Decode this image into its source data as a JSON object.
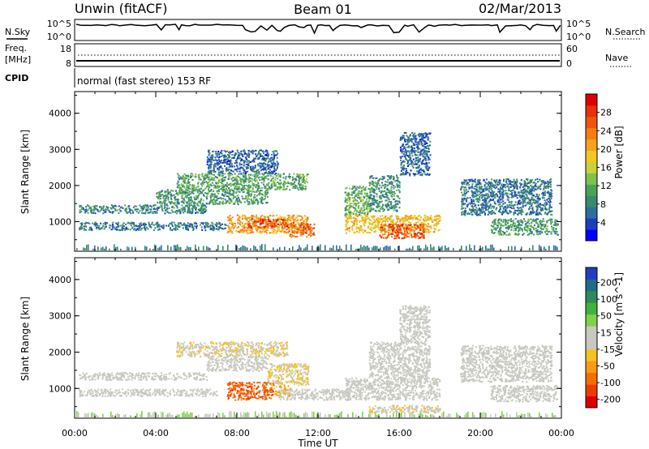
{
  "header": {
    "station": "Unwin (fitACF)",
    "beam": "Beam 01",
    "date": "02/Mar/2013"
  },
  "noise_panel": {
    "left_label": "N.Sky",
    "right_label": "N.Search",
    "left_ticks": [
      "10^5",
      "10^0"
    ],
    "right_ticks": [
      "10^5",
      "10^0"
    ]
  },
  "freq_panel": {
    "left_label_line1": "Freq.",
    "left_label_line2": "[MHz]",
    "right_label": "Nave",
    "left_ticks": [
      "18",
      "8"
    ],
    "right_ticks": [
      "60",
      "0"
    ]
  },
  "cpid_panel": {
    "label": "CPID",
    "text": "normal (fast stereo) 153 RF"
  },
  "chart_data": [
    {
      "type": "heatmap",
      "title": "",
      "xlabel": "Time UT",
      "ylabel": "Slant Range [km]",
      "xlim": [
        0,
        24
      ],
      "ylim": [
        180,
        4600
      ],
      "x_ticks": [
        "00:00",
        "04:00",
        "08:00",
        "12:00",
        "16:00",
        "20:00",
        "00:00"
      ],
      "y_ticks": [
        "1000",
        "2000",
        "3000",
        "4000"
      ],
      "colorbar": {
        "label": "Power [dB]",
        "ticks": [
          "4",
          "8",
          "12",
          "16",
          "20",
          "24",
          "28"
        ],
        "range": [
          0,
          32
        ],
        "colors": [
          "#0000ff",
          "#1a3fbf",
          "#2d6ea0",
          "#3a8a6e",
          "#4aa257",
          "#7fc24b",
          "#c9d23a",
          "#f2c81e",
          "#f7a21a",
          "#f57e14",
          "#f0540f",
          "#e8300b",
          "#e00000"
        ]
      },
      "regions": [
        {
          "t0": 0.2,
          "t1": 7.5,
          "r0": 780,
          "r1": 1000,
          "value": 7
        },
        {
          "t0": 0.2,
          "t1": 6.5,
          "r0": 1250,
          "r1": 1480,
          "value": 8
        },
        {
          "t0": 4.0,
          "t1": 9.5,
          "r0": 1500,
          "r1": 1900,
          "value": 10
        },
        {
          "t0": 5.0,
          "t1": 11.5,
          "r0": 1900,
          "r1": 2350,
          "value": 11
        },
        {
          "t0": 6.5,
          "t1": 10.0,
          "r0": 2350,
          "r1": 3000,
          "value": 6
        },
        {
          "t0": 7.5,
          "t1": 11.5,
          "r0": 700,
          "r1": 1200,
          "value": 21
        },
        {
          "t0": 8.5,
          "t1": 10.5,
          "r0": 850,
          "r1": 1100,
          "value": 27
        },
        {
          "t0": 10.5,
          "t1": 11.8,
          "r0": 600,
          "r1": 1000,
          "value": 25
        },
        {
          "t0": 13.3,
          "t1": 14.5,
          "r0": 1200,
          "r1": 2000,
          "value": 12
        },
        {
          "t0": 13.3,
          "t1": 18.0,
          "r0": 700,
          "r1": 1200,
          "value": 19
        },
        {
          "t0": 15.0,
          "t1": 17.2,
          "r0": 550,
          "r1": 950,
          "value": 26
        },
        {
          "t0": 14.5,
          "t1": 16.0,
          "r0": 1300,
          "r1": 2300,
          "value": 9
        },
        {
          "t0": 16.0,
          "t1": 17.5,
          "r0": 2300,
          "r1": 3500,
          "value": 6
        },
        {
          "t0": 20.5,
          "t1": 23.8,
          "r0": 650,
          "r1": 1100,
          "value": 10
        },
        {
          "t0": 19.0,
          "t1": 23.5,
          "r0": 1200,
          "r1": 2200,
          "value": 7
        }
      ]
    },
    {
      "type": "heatmap",
      "title": "",
      "xlabel": "Time UT",
      "ylabel": "Slant Range [km]",
      "xlim": [
        0,
        24
      ],
      "ylim": [
        180,
        4600
      ],
      "x_ticks": [
        "00:00",
        "04:00",
        "08:00",
        "12:00",
        "16:00",
        "20:00",
        "00:00"
      ],
      "y_ticks": [
        "1000",
        "2000",
        "3000",
        "4000"
      ],
      "colorbar": {
        "label": "Velocity [m s^-1]",
        "ticks": [
          "200",
          "100",
          "50",
          "15",
          "-15",
          "-50",
          "-100",
          "-200"
        ],
        "range": [
          -250,
          250
        ],
        "colors": [
          "#e00000",
          "#f03a00",
          "#f56d00",
          "#f79a14",
          "#f5c21e",
          "#c8c8c0",
          "#c8c8c0",
          "#7ed14b",
          "#3fb23c",
          "#2e8b57",
          "#206a8a",
          "#1f3fbf"
        ]
      },
      "regions": [
        {
          "t0": 0.2,
          "t1": 7.0,
          "r0": 800,
          "r1": 1000,
          "value": 0
        },
        {
          "t0": 0.2,
          "t1": 6.5,
          "r0": 1250,
          "r1": 1450,
          "value": 0
        },
        {
          "t0": 5.0,
          "t1": 10.5,
          "r0": 1900,
          "r1": 2300,
          "value": -30
        },
        {
          "t0": 6.5,
          "t1": 9.5,
          "r0": 1500,
          "r1": 1900,
          "value": 0
        },
        {
          "t0": 9.5,
          "t1": 11.5,
          "r0": 1100,
          "r1": 1700,
          "value": -40
        },
        {
          "t0": 7.5,
          "t1": 9.8,
          "r0": 700,
          "r1": 1200,
          "value": -160
        },
        {
          "t0": 9.8,
          "t1": 10.6,
          "r0": 800,
          "r1": 1100,
          "value": -80
        },
        {
          "t0": 10.0,
          "t1": 13.5,
          "r0": 700,
          "r1": 1000,
          "value": 0
        },
        {
          "t0": 13.3,
          "t1": 18.0,
          "r0": 700,
          "r1": 1300,
          "value": 0
        },
        {
          "t0": 14.5,
          "t1": 17.5,
          "r0": 1300,
          "r1": 2300,
          "value": 0
        },
        {
          "t0": 16.0,
          "t1": 17.5,
          "r0": 2300,
          "r1": 3300,
          "value": 0
        },
        {
          "t0": 14.5,
          "t1": 18.0,
          "r0": 350,
          "r1": 550,
          "value": -30
        },
        {
          "t0": 20.5,
          "t1": 23.8,
          "r0": 650,
          "r1": 1100,
          "value": 0
        },
        {
          "t0": 19.0,
          "t1": 23.5,
          "r0": 1200,
          "r1": 2200,
          "value": 0
        }
      ]
    }
  ]
}
